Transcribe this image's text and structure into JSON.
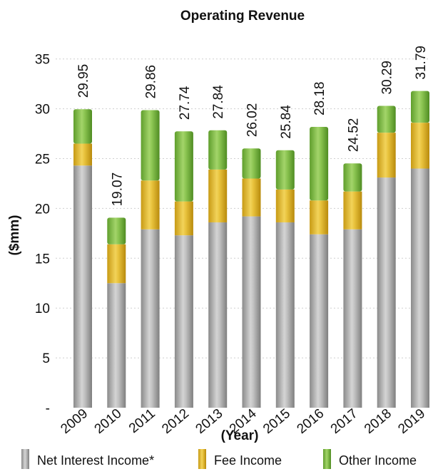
{
  "chart_data": {
    "type": "bar",
    "stacked": true,
    "title": "Operating Revenue",
    "xlabel": "(Year)",
    "ylabel": "($mm)",
    "categories": [
      "2009",
      "2010",
      "2011",
      "2012",
      "2013",
      "2014",
      "2015",
      "2016",
      "2017",
      "2018",
      "2019"
    ],
    "ylim": [
      0,
      37
    ],
    "yticks": [
      {
        "value": 0,
        "label": "-"
      },
      {
        "value": 5,
        "label": "5"
      },
      {
        "value": 10,
        "label": "10"
      },
      {
        "value": 15,
        "label": "15"
      },
      {
        "value": 20,
        "label": "20"
      },
      {
        "value": 25,
        "label": "25"
      },
      {
        "value": 30,
        "label": "30"
      },
      {
        "value": 35,
        "label": "35"
      }
    ],
    "grid": true,
    "legend_position": "bottom",
    "series": [
      {
        "name": "Net Interest Income*",
        "color": "#a9a9a9",
        "values": [
          24.3,
          12.5,
          17.9,
          17.3,
          18.6,
          19.2,
          18.6,
          17.4,
          17.9,
          23.1,
          24.0
        ]
      },
      {
        "name": "Fee Income",
        "color": "#e3bd30",
        "values": [
          2.2,
          3.9,
          4.9,
          3.4,
          5.3,
          3.8,
          3.3,
          3.4,
          3.8,
          4.5,
          4.6
        ]
      },
      {
        "name": "Other Income",
        "color": "#7fbd43",
        "values": [
          3.45,
          2.67,
          7.06,
          7.04,
          3.94,
          3.02,
          3.94,
          7.38,
          2.82,
          2.69,
          3.19
        ]
      }
    ],
    "totals": [
      29.95,
      19.07,
      29.86,
      27.74,
      27.84,
      26.02,
      25.84,
      28.18,
      24.52,
      30.29,
      31.79
    ],
    "total_labels": [
      "29.95",
      "19.07",
      "29.86",
      "27.74",
      "27.84",
      "26.02",
      "25.84",
      "28.18",
      "24.52",
      "30.29",
      "31.79"
    ]
  }
}
